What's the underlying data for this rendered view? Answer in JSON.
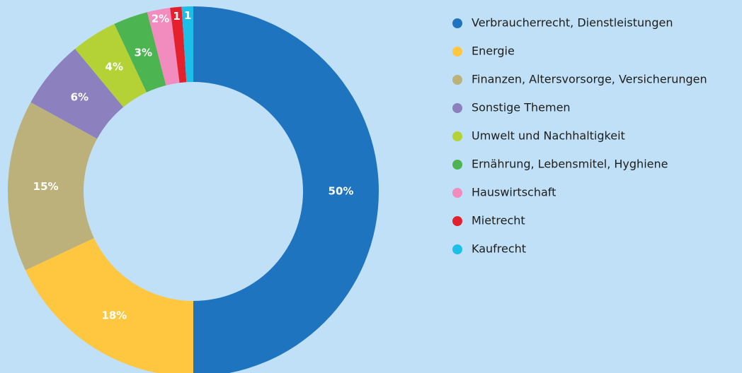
{
  "chart_data": {
    "type": "donut",
    "categories": [
      "Verbraucherrecht, Dienstleistungen",
      "Energie",
      "Finanzen, Altersvorsorge, Versicherungen",
      "Sonstige Themen",
      "Umwelt und Nachhaltigkeit",
      "Ernährung, Lebensmitel, Hyghiene",
      "Hauswirtschaft",
      "Mietrecht",
      "Kaufrecht"
    ],
    "values": [
      50,
      18,
      15,
      6,
      4,
      3,
      2,
      1,
      1
    ],
    "value_labels": [
      "50%",
      "18%",
      "15%",
      "6%",
      "4%",
      "3%",
      "2%",
      "1",
      "1"
    ],
    "colors": [
      "#1f74bf",
      "#ffc73f",
      "#bcb17a",
      "#8c80be",
      "#b4d236",
      "#4cb451",
      "#f28bbe",
      "#e3202b",
      "#1bbfe7"
    ],
    "legend": "right"
  }
}
